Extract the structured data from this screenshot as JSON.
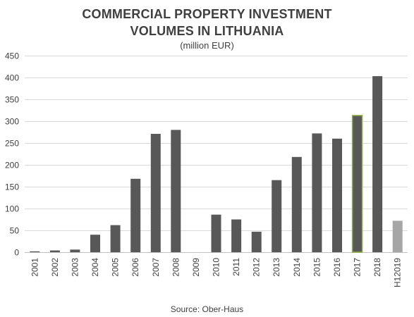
{
  "chart_data": {
    "type": "bar",
    "title_line1": "COMMERCIAL PROPERTY INVESTMENT",
    "title_line2": "VOLUMES IN LITHUANIA",
    "subtitle": "(million EUR)",
    "source": "Source: Ober-Haus",
    "xlabel": "",
    "ylabel": "",
    "ylim": [
      0,
      450
    ],
    "yticks": [
      0,
      50,
      100,
      150,
      200,
      250,
      300,
      350,
      400,
      450
    ],
    "grid": true,
    "legend": "none",
    "categories": [
      "2001",
      "2002",
      "2003",
      "2004",
      "2005",
      "2006",
      "2007",
      "2008",
      "2009",
      "2010",
      "2011",
      "2012",
      "2013",
      "2014",
      "2015",
      "2016",
      "2017",
      "2018",
      "H12019"
    ],
    "values": [
      2,
      4,
      6,
      40,
      62,
      168,
      271,
      280,
      0,
      86,
      75,
      47,
      165,
      218,
      272,
      260,
      313,
      403,
      72
    ],
    "bar_colors": [
      "#585858",
      "#585858",
      "#585858",
      "#585858",
      "#585858",
      "#585858",
      "#585858",
      "#585858",
      "#585858",
      "#585858",
      "#585858",
      "#585858",
      "#585858",
      "#585858",
      "#585858",
      "#585858",
      "#585858",
      "#585858",
      "#a6a6a6"
    ],
    "highlight_outline": {
      "category": "2017",
      "color": "#8db33a"
    }
  }
}
